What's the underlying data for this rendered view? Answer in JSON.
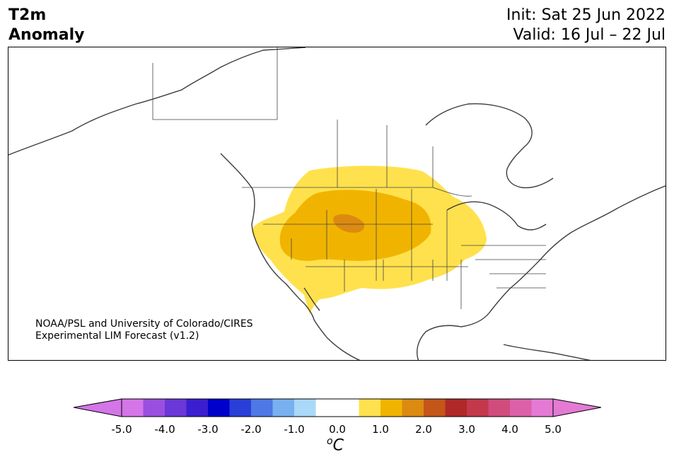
{
  "header": {
    "title_line1": "T2m",
    "title_line2": "Anomaly",
    "init": "Init: Sat 25 Jun 2022",
    "valid": "Valid: 16 Jul – 22 Jul"
  },
  "credit": {
    "line1": "NOAA/PSL and University of Colorado/CIRES",
    "line2": "Experimental LIM Forecast (v1.2)"
  },
  "colorbar": {
    "units": "C",
    "units_prefix": "o",
    "tick_labels": [
      "-5.0",
      "-4.0",
      "-3.0",
      "-2.0",
      "-1.0",
      "0.0",
      "1.0",
      "2.0",
      "3.0",
      "4.0",
      "5.0"
    ],
    "colors": [
      "#d475e8",
      "#9b4fe0",
      "#6a38d8",
      "#3a1ed0",
      "#0000cc",
      "#2a3ed8",
      "#4d78e6",
      "#78b0f0",
      "#aad8f8",
      "#ffffff",
      "#ffffff",
      "#ffe14d",
      "#f0b400",
      "#dc8a10",
      "#c4561a",
      "#b02828",
      "#c4384c",
      "#d04c7c",
      "#dc60a8",
      "#e47ad4"
    ],
    "extend_low_color": "#d475e8",
    "extend_high_color": "#e47ad4"
  },
  "anomaly_shading": {
    "levels": [
      "0.5-1.0",
      "1.0-1.5",
      "1.5-2.0"
    ],
    "colors": [
      "#ffe14d",
      "#f0b400",
      "#dc8a10"
    ]
  }
}
